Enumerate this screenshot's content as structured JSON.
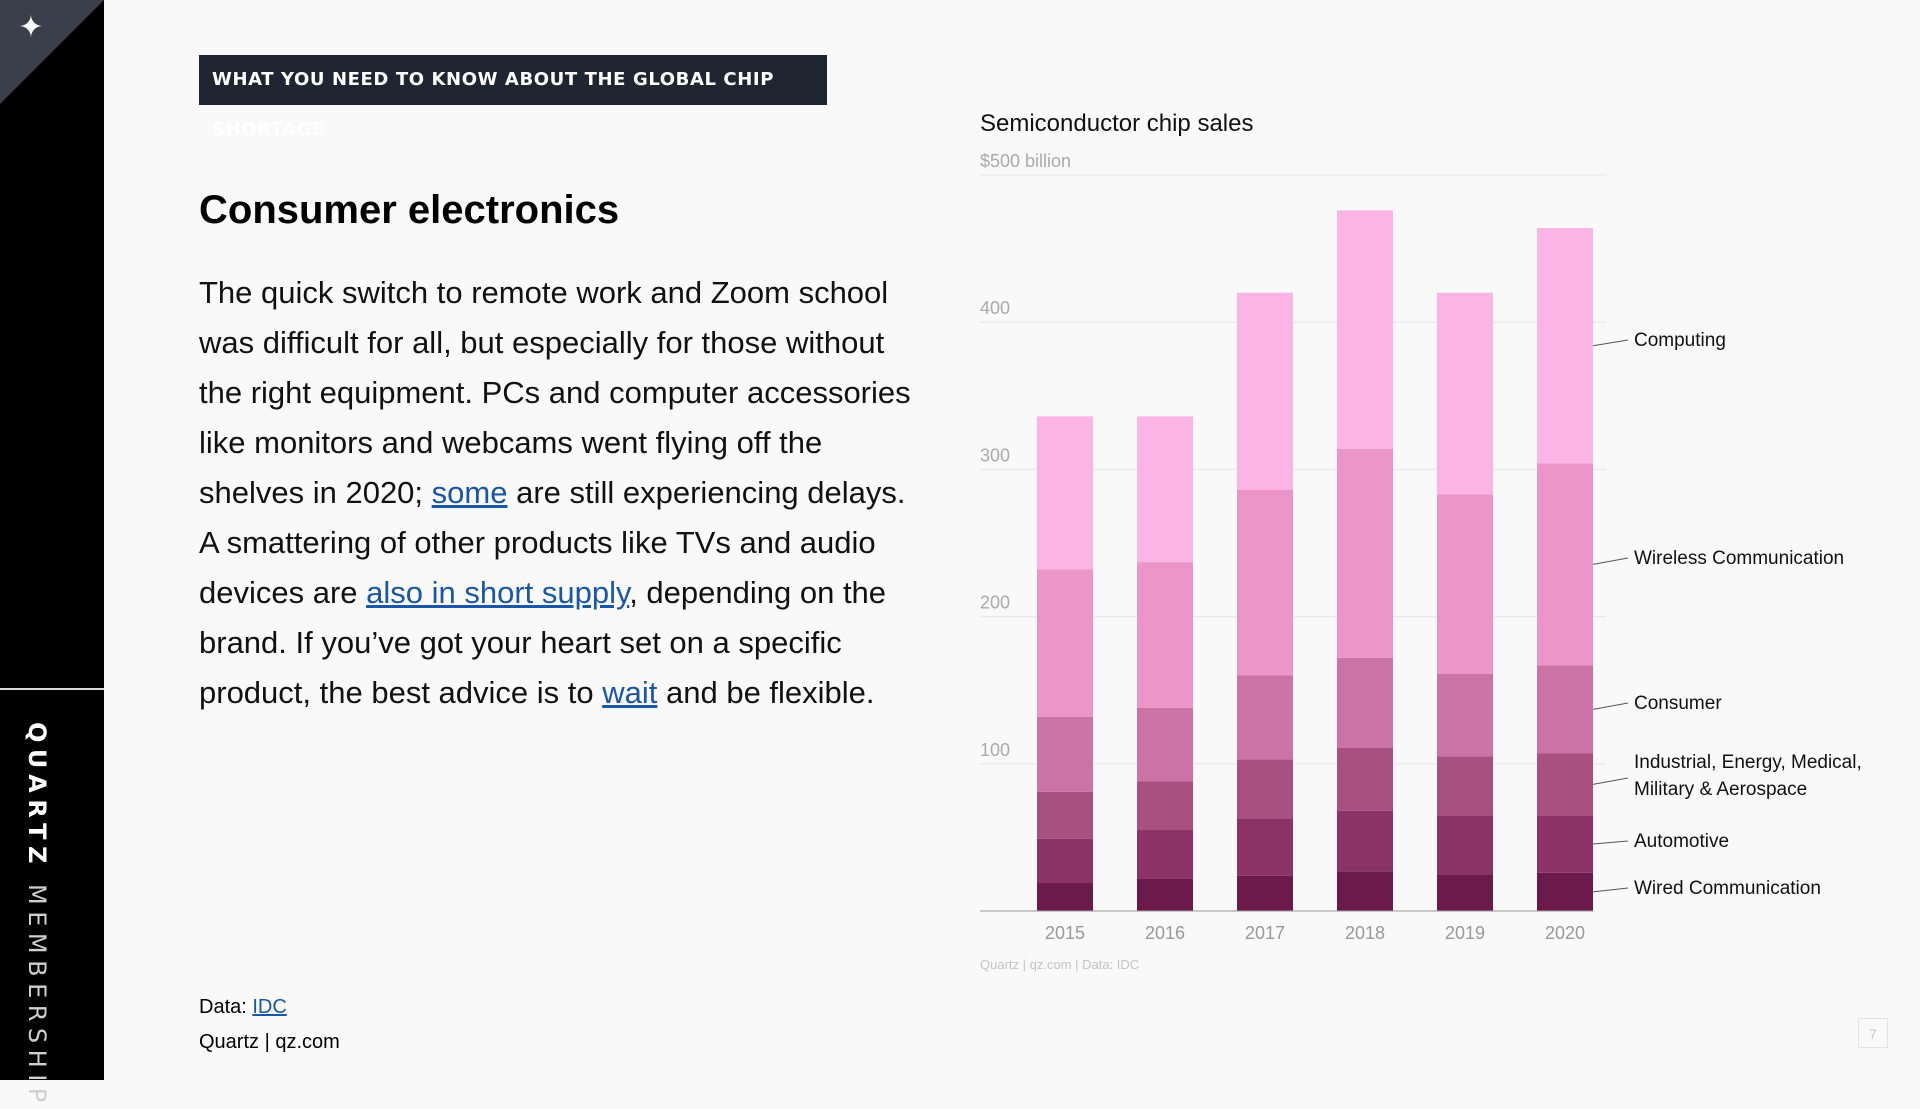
{
  "banner": "WHAT YOU NEED TO KNOW ABOUT THE GLOBAL CHIP SHORTAGE",
  "heading": "Consumer electronics",
  "body": {
    "p1": "The quick switch to remote work and Zoom school was difficult for all, but especially for those without the right equipment. PCs and computer accessories like monitors and webcams went flying off the shelves in 2020; ",
    "link1": "some",
    "p2": " are still experiencing delays. A smattering of other products like TVs and audio devices are ",
    "link2": "also in short supply",
    "p3": ", depending on the brand. If you’ve got your heart set on a specific product, the best advice is to ",
    "link3": "wait",
    "p4": " and be flexible."
  },
  "footer": {
    "data_prefix": "Data: ",
    "data_link": "IDC",
    "credit": "Quartz | qz.com"
  },
  "sidebar": {
    "brand_bold": "QUARTZ",
    "brand_light": " MEMBERSHIP"
  },
  "page_number": "7",
  "chart_data": {
    "type": "bar",
    "stacked": true,
    "title": "Semiconductor chip sales",
    "y_top_label": "$500 billion",
    "y_ticks": [
      "100",
      "200",
      "300",
      "400"
    ],
    "ylim": [
      0,
      500
    ],
    "categories": [
      "2015",
      "2016",
      "2017",
      "2018",
      "2019",
      "2020"
    ],
    "source": "Quartz | qz.com | Data: IDC",
    "series": [
      {
        "name": "Wired Communication",
        "color": "#6b1a4a",
        "values": [
          19,
          22,
          24,
          27,
          25,
          26
        ]
      },
      {
        "name": "Automotive",
        "color": "#8c3366",
        "values": [
          30,
          33,
          39,
          41,
          40,
          39
        ]
      },
      {
        "name": "Industrial, Energy, Medical, Military & Aerospace",
        "color": "#a8507f",
        "values": [
          32,
          33,
          40,
          43,
          40,
          42
        ]
      },
      {
        "name": "Consumer",
        "color": "#cc73a6",
        "values": [
          51,
          50,
          57,
          61,
          56,
          60
        ]
      },
      {
        "name": "Wireless Communication",
        "color": "#eb96c6",
        "values": [
          100,
          99,
          126,
          142,
          122,
          137
        ]
      },
      {
        "name": "Computing",
        "color": "#fcb3e6",
        "values": [
          104,
          99,
          134,
          162,
          137,
          160
        ]
      }
    ],
    "grid": true,
    "legend": "right, inline labels"
  }
}
